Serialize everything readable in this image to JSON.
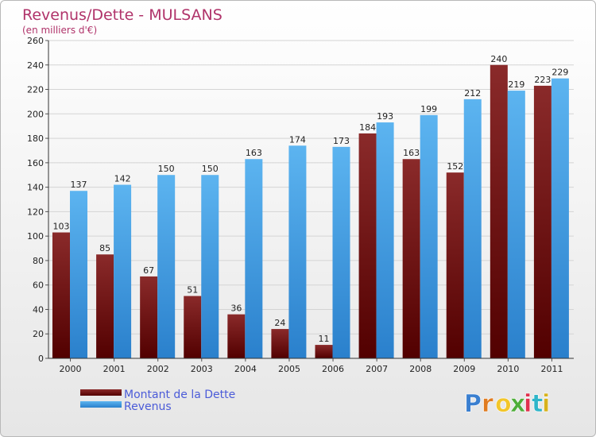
{
  "title": "Revenus/Dette - MULSANS",
  "subtitle": "(en milliers d'€)",
  "logo_text": "Proxiti",
  "colors": {
    "title": "#b0336a",
    "dette": "#6e0f0f",
    "revenus": "#4aa3e8",
    "legend_text": "#4b5bd8",
    "grid": "#d4d4d4"
  },
  "chart_data": {
    "type": "bar",
    "title": "Revenus/Dette - MULSANS",
    "subtitle": "(en milliers d'€)",
    "categories": [
      "2000",
      "2001",
      "2002",
      "2003",
      "2004",
      "2005",
      "2006",
      "2007",
      "2008",
      "2009",
      "2010",
      "2011"
    ],
    "series": [
      {
        "name": "Montant de la Dette",
        "values": [
          103,
          85,
          67,
          51,
          36,
          24,
          11,
          184,
          163,
          152,
          240,
          223
        ]
      },
      {
        "name": "Revenus",
        "values": [
          137,
          142,
          150,
          150,
          163,
          174,
          173,
          193,
          199,
          212,
          219,
          229
        ]
      }
    ],
    "ylim": [
      0,
      260
    ],
    "yticks": [
      0,
      20,
      40,
      60,
      80,
      100,
      120,
      140,
      160,
      180,
      200,
      220,
      240,
      260
    ],
    "grid": true,
    "legend_position": "bottom-left"
  }
}
